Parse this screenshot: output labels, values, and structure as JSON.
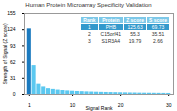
{
  "chart_data": {
    "type": "bar",
    "title": "Human Protein Microarray Specificity Validation",
    "xlabel": "Signal Rank",
    "ylabel": "Strength of Signal (Z score)",
    "x": [
      1,
      2,
      3,
      4,
      5,
      6,
      7,
      8,
      9,
      10,
      11,
      12,
      13,
      14,
      15,
      16,
      17,
      18,
      19,
      20,
      21,
      22,
      23,
      24,
      25,
      26,
      27,
      28,
      29,
      30
    ],
    "values": [
      125.63,
      55.3,
      19.79,
      14.5,
      11.2,
      9.8,
      8.5,
      7.6,
      6.9,
      6.3,
      5.8,
      5.4,
      5.0,
      4.7,
      4.4,
      4.1,
      3.9,
      3.7,
      3.5,
      3.3,
      3.1,
      2.9,
      2.8,
      2.6,
      2.5,
      2.4,
      2.3,
      2.2,
      2.1,
      2.0
    ],
    "colors": [
      "#1a7abf",
      "#5bc8f0",
      "#5bc8f0",
      "#5bc8f0",
      "#5bc8f0",
      "#5bc8f0",
      "#5bc8f0",
      "#5bc8f0",
      "#5bc8f0",
      "#5bc8f0",
      "#5bc8f0",
      "#5bc8f0",
      "#5bc8f0",
      "#5bc8f0",
      "#5bc8f0",
      "#5bc8f0",
      "#5bc8f0",
      "#5bc8f0",
      "#5bc8f0",
      "#5bc8f0",
      "#5bc8f0",
      "#5bc8f0",
      "#5bc8f0",
      "#5bc8f0",
      "#5bc8f0",
      "#5bc8f0",
      "#5bc8f0",
      "#5bc8f0",
      "#5bc8f0",
      "#5bc8f0"
    ],
    "xlim": [
      0,
      31
    ],
    "xticks": [
      1,
      10,
      20,
      30
    ],
    "ylim": [
      0,
      155
    ],
    "yticks": [
      0,
      31,
      62,
      93,
      124,
      155
    ],
    "table": {
      "headers": [
        "Rank",
        "Protein",
        "Z score",
        "S score"
      ],
      "rows": [
        [
          "1",
          "PHB",
          "125.63",
          "69.73"
        ],
        [
          "2",
          "C15orf41",
          "55.3",
          "35.51"
        ],
        [
          "3",
          "S1R3A4",
          "19.79",
          "2.66"
        ]
      ]
    }
  }
}
